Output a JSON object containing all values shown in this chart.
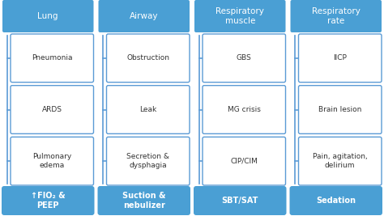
{
  "columns": [
    {
      "header": "Lung",
      "items": [
        "Pneumonia",
        "ARDS",
        "Pulmonary\nedema"
      ],
      "footer": "↑FIO₂ &\nPEEP"
    },
    {
      "header": "Airway",
      "items": [
        "Obstruction",
        "Leak",
        "Secretion &\ndysphagia"
      ],
      "footer": "Suction &\nnebulizer"
    },
    {
      "header": "Respiratory\nmuscle",
      "items": [
        "GBS",
        "MG crisis",
        "CIP/CIM"
      ],
      "footer": "SBT/SAT"
    },
    {
      "header": "Respiratory\nrate",
      "items": [
        "IICP",
        "Brain lesion",
        "Pain, agitation,\ndelirium"
      ],
      "footer": "Sedation"
    }
  ],
  "header_color": "#4a9fd4",
  "footer_color": "#4a9fd4",
  "item_box_facecolor": "white",
  "item_border_color": "#5b9bd5",
  "connector_color": "#5b9bd5",
  "header_text_color": "white",
  "footer_text_color": "white",
  "item_text_color": "#333333",
  "background_color": "white",
  "fig_width": 4.74,
  "fig_height": 2.67
}
